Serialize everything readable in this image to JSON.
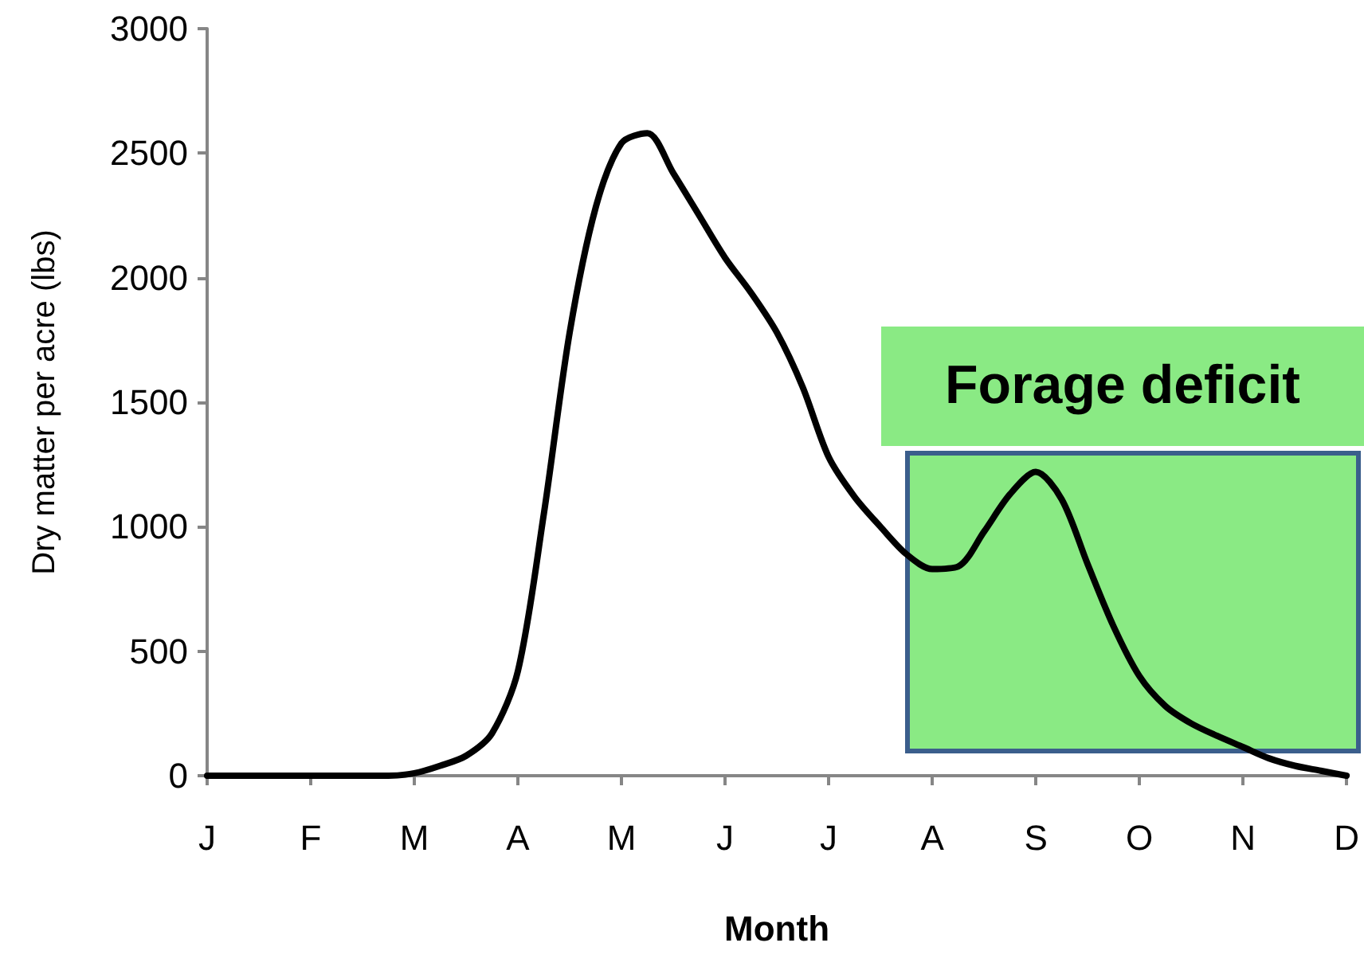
{
  "chart_data": {
    "type": "line",
    "xlabel": "Month",
    "ylabel": "Dry matter per acre (lbs)",
    "categories": [
      "J",
      null,
      null,
      null,
      "F",
      null,
      null,
      null,
      "M",
      null,
      null,
      null,
      "A",
      null,
      null,
      null,
      "M",
      null,
      null,
      null,
      "J",
      null,
      null,
      null,
      "J",
      null,
      null,
      null,
      "A",
      null,
      null,
      null,
      "S",
      null,
      null,
      null,
      "O",
      null,
      null,
      null,
      "N",
      null,
      null,
      null,
      "D"
    ],
    "series": [
      {
        "color": "#000000",
        "values": [
          0,
          0,
          0,
          0,
          0,
          0,
          0,
          0,
          10,
          40,
          80,
          170,
          420,
          1050,
          1780,
          2280,
          2540,
          2580,
          2420,
          2250,
          2080,
          1940,
          1780,
          1560,
          1280,
          1120,
          1000,
          890,
          830,
          840,
          980,
          1130,
          1220,
          1110,
          850,
          600,
          400,
          280,
          210,
          160,
          115,
          70,
          40,
          20,
          0
        ]
      }
    ],
    "ylim": [
      0,
      3000
    ],
    "yticks": [
      0,
      500,
      1000,
      1500,
      2000,
      2500,
      3000
    ],
    "annotations": [
      "Forage deficit"
    ],
    "grid": false,
    "marker": "none",
    "line_style": "solid"
  }
}
